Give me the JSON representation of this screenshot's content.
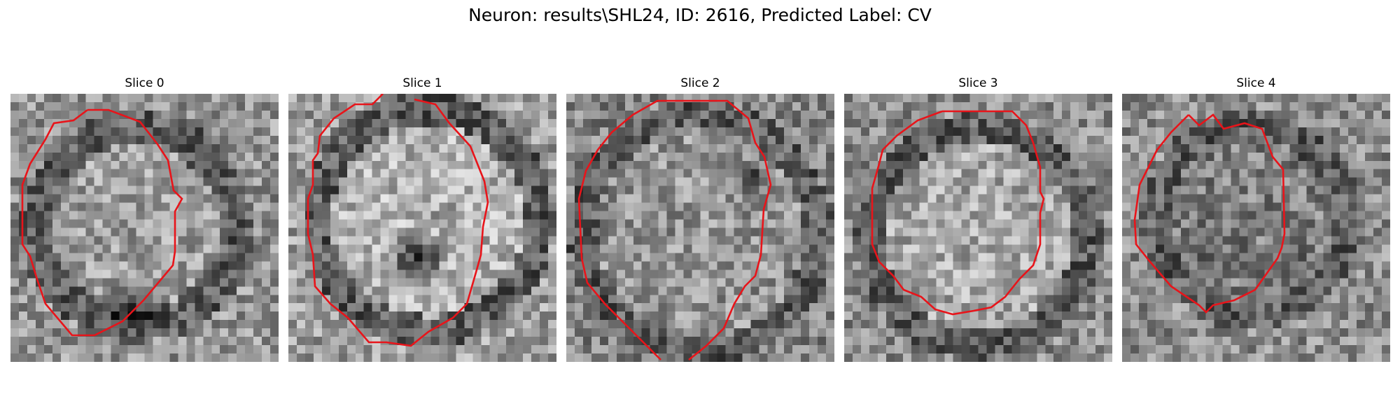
{
  "figure": {
    "title": "Neuron: results\\SHL24, ID: 2616, Predicted Label: CV"
  },
  "panels": [
    {
      "title": "Slice 0"
    },
    {
      "title": "Slice 1"
    },
    {
      "title": "Slice 2"
    },
    {
      "title": "Slice 3"
    },
    {
      "title": "Slice 4"
    }
  ],
  "colors": {
    "contour": "#e8141a",
    "background": "#ffffff"
  },
  "image_style": "grayscale-noise-micrograph"
}
